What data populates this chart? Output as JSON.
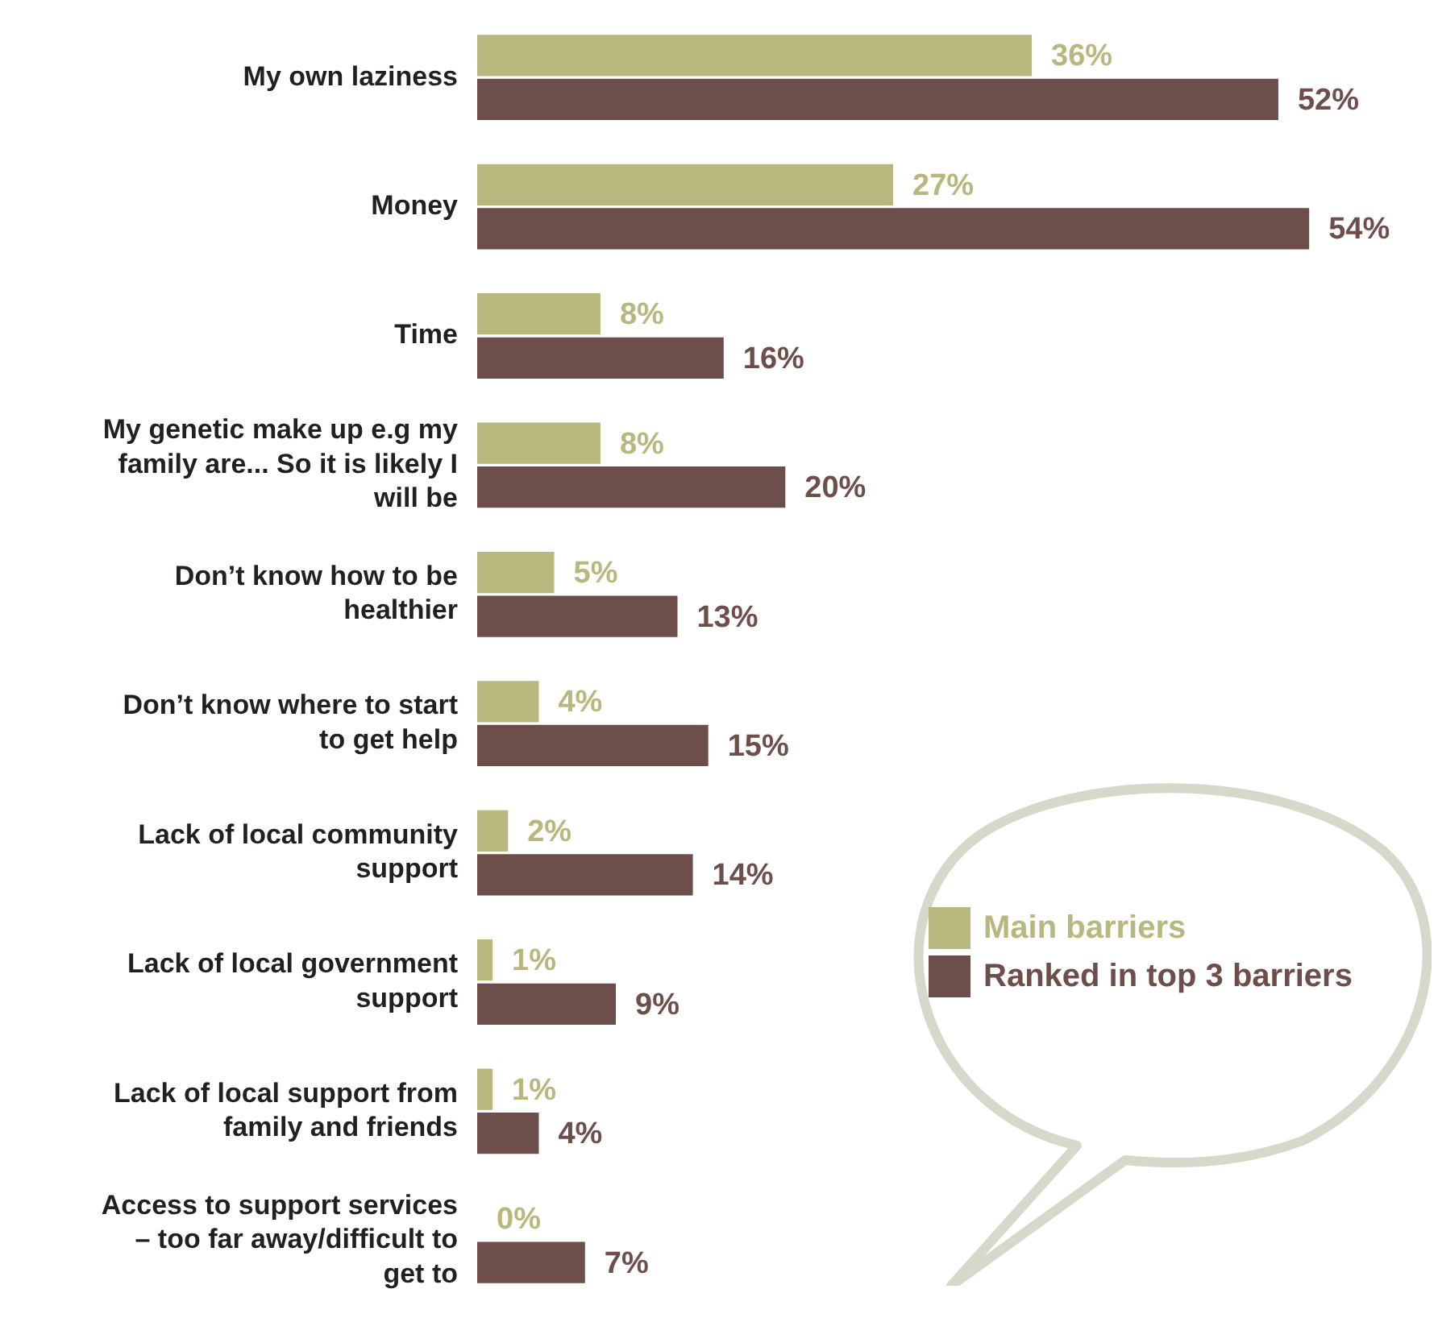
{
  "chart_data": {
    "type": "bar",
    "orientation": "horizontal",
    "categories": [
      "My own laziness",
      "Money",
      "Time",
      "My genetic make up e.g my family are... So it is likely I will be",
      "Don’t know how to be healthier",
      "Don’t know where to start to get help",
      "Lack of local community support",
      "Lack of local government support",
      "Lack of local support from family and friends",
      "Access to support services – too far away/difficult to get to"
    ],
    "series": [
      {
        "name": "Main barriers",
        "color": "#b8b87e",
        "values": [
          36,
          27,
          8,
          8,
          5,
          4,
          2,
          1,
          1,
          0
        ],
        "value_labels": [
          "36%",
          "27%",
          "8%",
          "8%",
          "5%",
          "4%",
          "2%",
          "1%",
          "1%",
          "0%"
        ]
      },
      {
        "name": "Ranked in top 3 barriers",
        "color": "#6e4e4a",
        "values": [
          52,
          54,
          16,
          20,
          13,
          15,
          14,
          9,
          4,
          7
        ],
        "value_labels": [
          "52%",
          "54%",
          "16%",
          "20%",
          "13%",
          "15%",
          "14%",
          "9%",
          "4%",
          "7%"
        ]
      }
    ],
    "legend": "right",
    "grid": false
  }
}
